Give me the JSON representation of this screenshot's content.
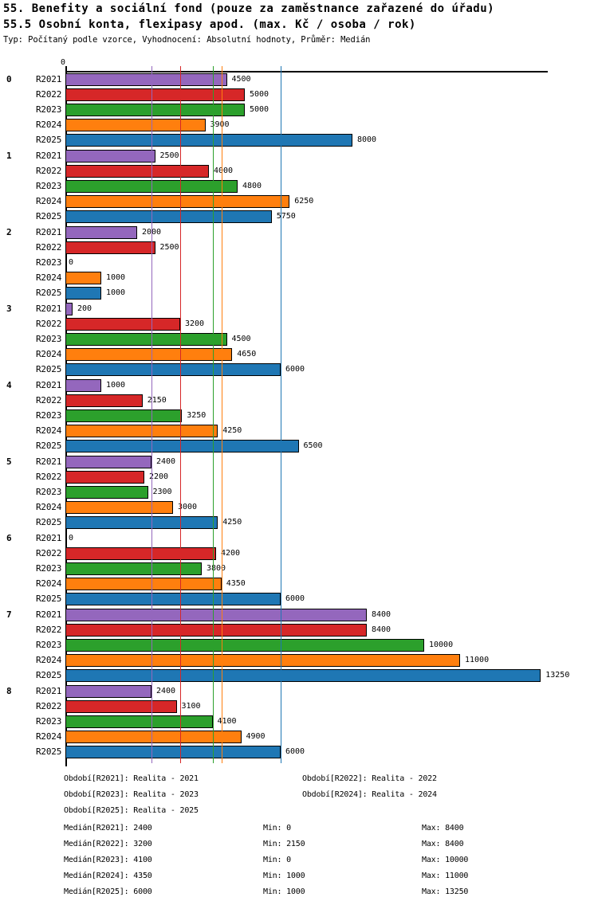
{
  "chart_data": {
    "type": "bar",
    "orientation": "horizontal",
    "title": "55. Benefity a sociální fond (pouze za zaměstnance zařazené do úřadu)",
    "subtitle": "55.5 Osobní konta, flexipasy apod. (max. Kč / osoba / rok)",
    "info_line": "Typ: Počítaný podle vzorce, Vyhodnocení: Absolutní hodnoty, Průměr: Medián",
    "axis_origin_label": "0",
    "xlabel": "",
    "ylabel": "",
    "xlim": [
      0,
      13450
    ],
    "grid": false,
    "categories": [
      "0",
      "1",
      "2",
      "3",
      "4",
      "5",
      "6",
      "7",
      "8"
    ],
    "series": [
      {
        "name": "R2021",
        "color": "#9467bd",
        "median": 2400,
        "min": 0,
        "max": 8400,
        "values": [
          4500,
          2500,
          2000,
          200,
          1000,
          2400,
          0,
          8400,
          2400
        ]
      },
      {
        "name": "R2022",
        "color": "#d62728",
        "median": 3200,
        "min": 2150,
        "max": 8400,
        "values": [
          5000,
          4000,
          2500,
          3200,
          2150,
          2200,
          4200,
          8400,
          3100
        ]
      },
      {
        "name": "R2023",
        "color": "#2ca02c",
        "median": 4100,
        "min": 0,
        "max": 10000,
        "values": [
          5000,
          4800,
          0,
          4500,
          3250,
          2300,
          3800,
          10000,
          4100
        ]
      },
      {
        "name": "R2024",
        "color": "#ff7f0e",
        "median": 4350,
        "min": 1000,
        "max": 11000,
        "values": [
          3900,
          6250,
          1000,
          4650,
          4250,
          3000,
          4350,
          11000,
          4900
        ]
      },
      {
        "name": "R2025",
        "color": "#1f77b4",
        "median": 6000,
        "min": 1000,
        "max": 13250,
        "values": [
          8000,
          5750,
          1000,
          6000,
          6500,
          4250,
          6000,
          13250,
          6000
        ]
      }
    ],
    "median_lines_shown": true,
    "axis_color": "#000000",
    "background_color": "#ffffff"
  },
  "legend": {
    "period_entries": [
      "Období[R2021]: Realita - 2021",
      "Období[R2022]: Realita - 2022",
      "Období[R2023]: Realita - 2023",
      "Období[R2024]: Realita - 2024",
      "Období[R2025]: Realita - 2025"
    ],
    "stat_rows": [
      {
        "median": "Medián[R2021]: 2400",
        "min": "Min: 0",
        "max": "Max: 8400"
      },
      {
        "median": "Medián[R2022]: 3200",
        "min": "Min: 2150",
        "max": "Max: 8400"
      },
      {
        "median": "Medián[R2023]: 4100",
        "min": "Min: 0",
        "max": "Max: 10000"
      },
      {
        "median": "Medián[R2024]: 4350",
        "min": "Min: 1000",
        "max": "Max: 11000"
      },
      {
        "median": "Medián[R2025]: 6000",
        "min": "Min: 1000",
        "max": "Max: 13250"
      }
    ]
  }
}
